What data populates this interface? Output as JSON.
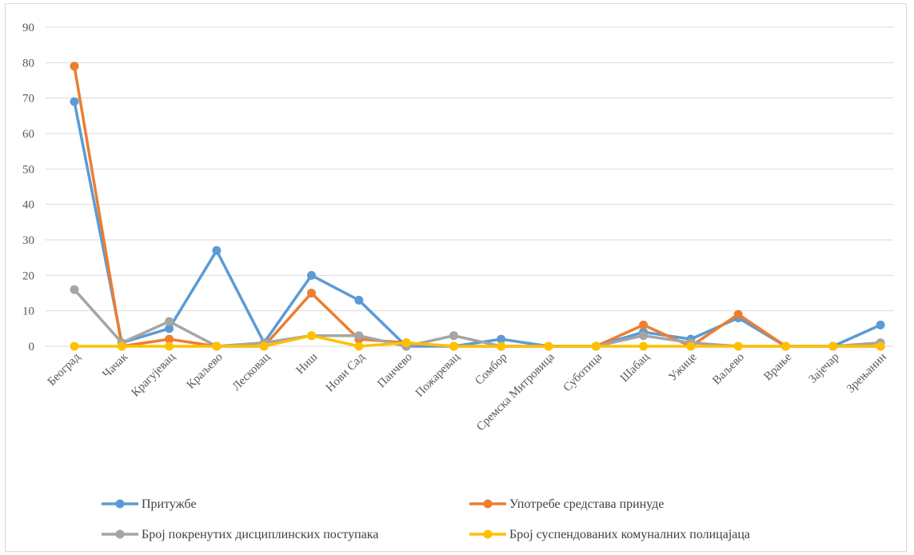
{
  "chart_data": {
    "type": "line",
    "title": "",
    "xlabel": "",
    "ylabel": "",
    "ylim": [
      0,
      90
    ],
    "yticks": [
      0,
      10,
      20,
      30,
      40,
      50,
      60,
      70,
      80,
      90
    ],
    "grid": true,
    "legend_position": "bottom",
    "categories": [
      "Београд",
      "Чачак",
      "Крагујевац",
      "Краљево",
      "Лесковац",
      "Ниш",
      "Нови Сад",
      "Панчево",
      "Пожаревац",
      "Сомбор",
      "Сремска Митровица",
      "Суботица",
      "Шабац",
      "Ужице",
      "Ваљево",
      "Врање",
      "Зајечар",
      "Зрењанин"
    ],
    "series": [
      {
        "name": "Притужбе",
        "color": "#5b9bd5",
        "values": [
          69,
          1,
          5,
          27,
          1,
          20,
          13,
          0,
          0,
          2,
          0,
          0,
          4,
          2,
          8,
          0,
          0,
          6
        ]
      },
      {
        "name": "Употребе средстава принуде",
        "color": "#ed7d31",
        "values": [
          79,
          0,
          2,
          0,
          0,
          15,
          2,
          1,
          0,
          0,
          0,
          0,
          6,
          0,
          9,
          0,
          0,
          0
        ]
      },
      {
        "name": "Број покренутих дисциплинских поступака",
        "color": "#a5a5a5",
        "values": [
          16,
          1,
          7,
          0,
          1,
          3,
          3,
          0,
          3,
          0,
          0,
          0,
          3,
          1,
          0,
          0,
          0,
          1
        ]
      },
      {
        "name": "Број суспендованих комуналних полицајаца",
        "color": "#ffc000",
        "values": [
          0,
          0,
          0,
          0,
          0,
          3,
          0,
          1,
          0,
          0,
          0,
          0,
          0,
          0,
          0,
          0,
          0,
          0
        ]
      }
    ]
  }
}
